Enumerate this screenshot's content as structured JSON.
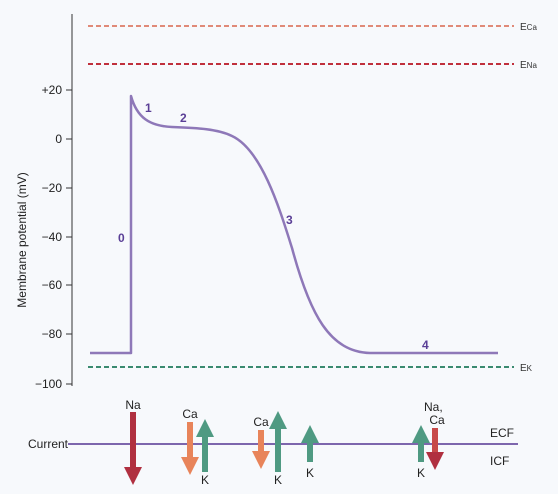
{
  "axis": {
    "ylabel": "Membrane potential (mV)",
    "ticks": [
      "+20",
      "0",
      "−20",
      "−40",
      "−60",
      "−80",
      "−100"
    ]
  },
  "equilibrium": {
    "eca": {
      "main": "E",
      "sub": "Ca",
      "color": "#e08a78"
    },
    "ena": {
      "main": "E",
      "sub": "Na",
      "color": "#c0303c"
    },
    "ek": {
      "main": "E",
      "sub": "K",
      "color": "#3a8a70"
    }
  },
  "phases": [
    "0",
    "1",
    "2",
    "3",
    "4"
  ],
  "currents": {
    "label": "Current",
    "ecf": "ECF",
    "icf": "ICF",
    "ions": {
      "na": "Na",
      "ca1": "Ca",
      "k1": "K",
      "ca2": "Ca",
      "k2": "K",
      "k3": "K",
      "na_ca_line1": "Na,",
      "na_ca_line2": "Ca",
      "k4": "K"
    }
  },
  "colors": {
    "trace": "#8e78b8",
    "current_line": "#7d66ad",
    "na_arrow": "#b03040",
    "ca_arrow": "#e8845a",
    "k_arrow": "#4f9a82"
  }
}
